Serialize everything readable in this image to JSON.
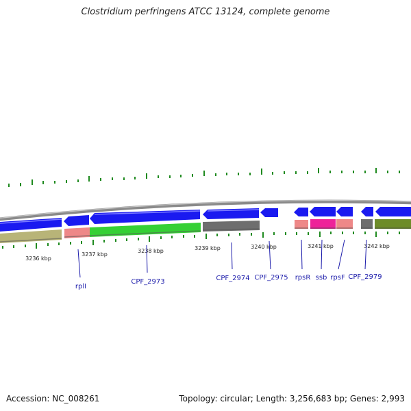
{
  "title": "Clostridium perfringens ATCC 13124, complete genome",
  "footer": {
    "accession": "Accession: NC_008261",
    "topology": "Topology: circular; Length: 3,256,683 bp; Genes: 2,993"
  },
  "colors": {
    "backbone": "#888888",
    "forward_cds": "#1a1af0",
    "reverse_gray": "#6e6e6e",
    "green": "#35d035",
    "olive": "#b8b478",
    "salmon": "#ee8888",
    "magenta": "#ee2299",
    "olive_dark": "#6e8c28",
    "tick": "#1f8a1f",
    "label": "#1a1aaa"
  },
  "scale_labels": [
    "3236 kbp",
    "3237 kbp",
    "3238 kbp",
    "3239 kbp",
    "3240 kbp",
    "3241 kbp",
    "3242 kbp"
  ],
  "gene_labels": [
    "rplI",
    "CPF_2973",
    "CPF_2974",
    "CPF_2975",
    "rpsR",
    "ssb",
    "rpsF",
    "CPF_2979"
  ]
}
